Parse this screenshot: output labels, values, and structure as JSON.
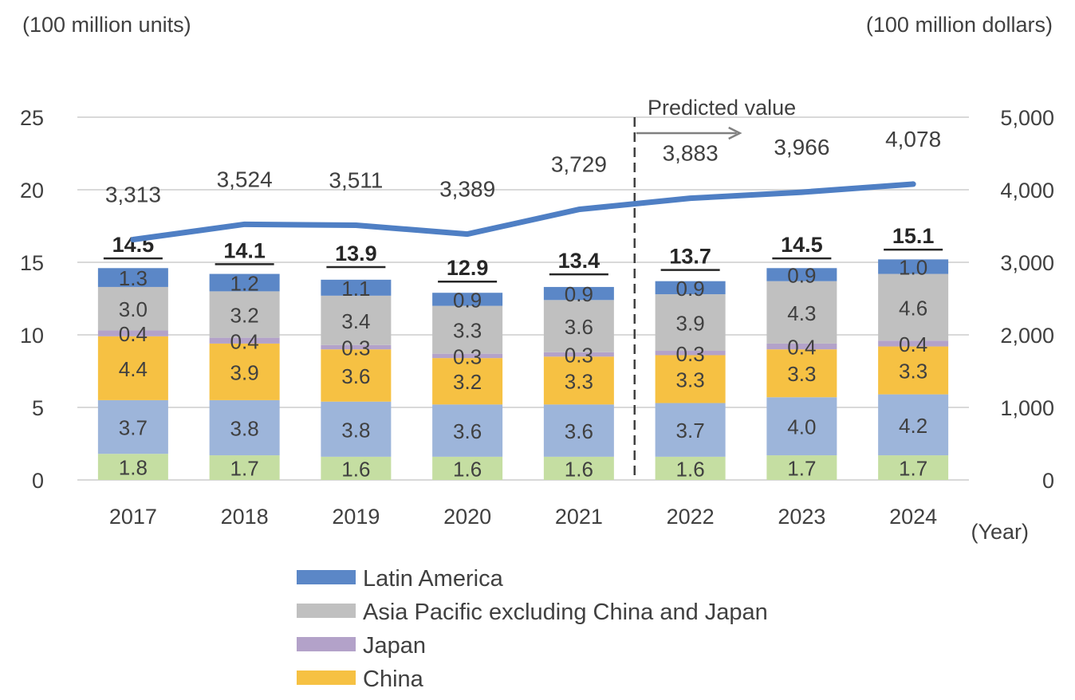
{
  "chart_data": {
    "type": "bar",
    "stacked": true,
    "y_unit_left": "(100 million units)",
    "y_unit_right": "(100 million dollars)",
    "x_unit": "(Year)",
    "annotation": "Predicted value",
    "categories": [
      "2017",
      "2018",
      "2019",
      "2020",
      "2021",
      "2022",
      "2023",
      "2024"
    ],
    "ylim_left": [
      0,
      25
    ],
    "yticks_left": [
      "0",
      "5",
      "10",
      "15",
      "20",
      "25"
    ],
    "ylim_right": [
      0,
      5000
    ],
    "yticks_right": [
      "0",
      "1,000",
      "2,000",
      "3,000",
      "4,000",
      "5,000"
    ],
    "series": [
      {
        "name": "",
        "color": "#c5dea2",
        "values": [
          1.8,
          1.7,
          1.6,
          1.6,
          1.6,
          1.6,
          1.7,
          1.7
        ],
        "labels": [
          "1.8",
          "1.7",
          "1.6",
          "1.6",
          "1.6",
          "1.6",
          "1.7",
          "1.7"
        ]
      },
      {
        "name": "",
        "color": "#9db5da",
        "values": [
          3.7,
          3.8,
          3.8,
          3.6,
          3.6,
          3.7,
          4.0,
          4.2
        ],
        "labels": [
          "3.7",
          "3.8",
          "3.8",
          "3.6",
          "3.6",
          "3.7",
          "4.0",
          "4.2"
        ]
      },
      {
        "name": "China",
        "color": "#f6c143",
        "values": [
          4.4,
          3.9,
          3.6,
          3.2,
          3.3,
          3.3,
          3.3,
          3.3
        ],
        "labels": [
          "4.4",
          "3.9",
          "3.6",
          "3.2",
          "3.3",
          "3.3",
          "3.3",
          "3.3"
        ]
      },
      {
        "name": "Japan",
        "color": "#b3a2c9",
        "values": [
          0.4,
          0.4,
          0.3,
          0.3,
          0.3,
          0.3,
          0.4,
          0.4
        ],
        "labels": [
          "0.4",
          "0.4",
          "0.3",
          "0.3",
          "0.3",
          "0.3",
          "0.4",
          "0.4"
        ]
      },
      {
        "name": "Asia Pacific excluding China and Japan",
        "color": "#c0c0c0",
        "values": [
          3.0,
          3.2,
          3.4,
          3.3,
          3.6,
          3.9,
          4.3,
          4.6
        ],
        "labels": [
          "3.0",
          "3.2",
          "3.4",
          "3.3",
          "3.6",
          "3.9",
          "4.3",
          "4.6"
        ]
      },
      {
        "name": "Latin America",
        "color": "#5b87c7",
        "values": [
          1.3,
          1.2,
          1.1,
          0.9,
          0.9,
          0.9,
          0.9,
          1.0
        ],
        "labels": [
          "1.3",
          "1.2",
          "1.1",
          "0.9",
          "0.9",
          "0.9",
          "0.9",
          "1.0"
        ]
      }
    ],
    "totals": [
      "14.5",
      "14.1",
      "13.9",
      "12.9",
      "13.4",
      "13.7",
      "14.5",
      "15.1"
    ],
    "total_values": [
      14.5,
      14.1,
      13.9,
      12.9,
      13.4,
      13.7,
      14.5,
      15.1
    ],
    "line": {
      "axis": "right",
      "color": "#4f7fc4",
      "values": [
        3313,
        3524,
        3511,
        3389,
        3729,
        3883,
        3966,
        4078
      ],
      "labels": [
        "3,313",
        "3,524",
        "3,511",
        "3,389",
        "3,729",
        "3,883",
        "3,966",
        "4,078"
      ]
    },
    "legend": [
      {
        "name": "Latin America",
        "color": "#5b87c7"
      },
      {
        "name": "Asia Pacific excluding China and Japan",
        "color": "#c0c0c0"
      },
      {
        "name": "Japan",
        "color": "#b3a2c9"
      },
      {
        "name": "China",
        "color": "#f6c143"
      }
    ],
    "grid": true,
    "legend_position": "bottom"
  }
}
